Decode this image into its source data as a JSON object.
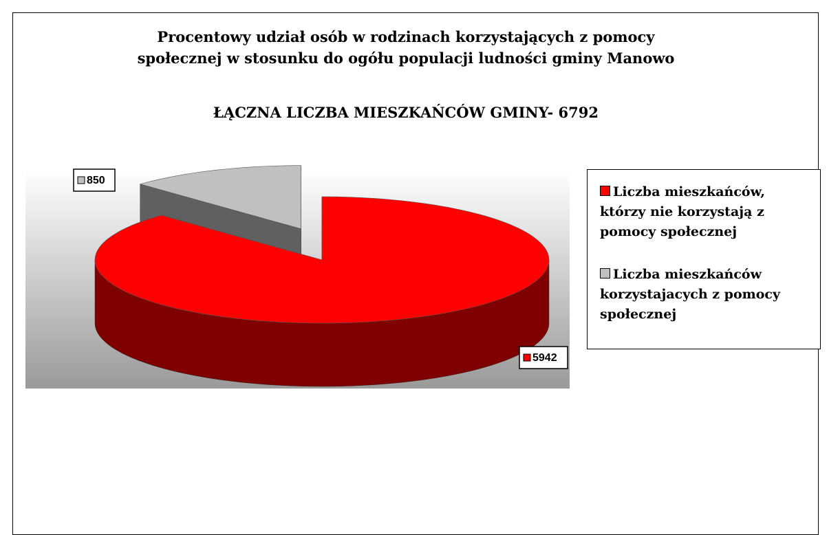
{
  "chart_data": {
    "type": "pie",
    "title": "Procentowy  udział osób w rodzinach korzystających z pomocy społecznej w stosunku do ogółu populacji ludności gminy Manowo",
    "subtitle": "ŁĄCZNA LICZBA MIESZKAŃCÓW GMINY- 6792",
    "categories": [
      "Liczba mieszkańców, którzy nie korzystają z pomocy społecznej",
      "Liczba mieszkańców korzystajacych z pomocy społecznej"
    ],
    "values": [
      5942,
      850
    ],
    "colors": [
      "#ff0000",
      "#c0c0c0"
    ],
    "legend": "right"
  }
}
